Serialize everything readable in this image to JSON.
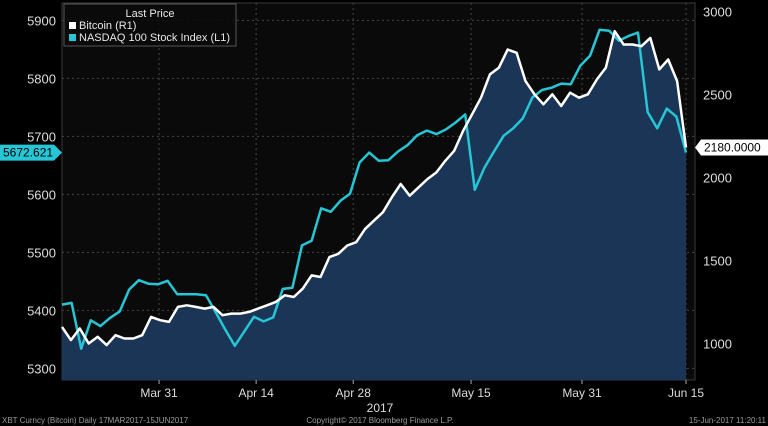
{
  "chart_data": {
    "type": "line",
    "legend_title": "Last Price",
    "legend_position": "top-left",
    "xlabel": "2017",
    "grid": true,
    "x_ticks": [
      "Mar 31",
      "Apr 14",
      "Apr 28",
      "May 15",
      "May 31",
      "Jun 15"
    ],
    "y_left": {
      "range": [
        5280,
        5930
      ],
      "ticks": [
        "5300",
        "5400",
        "5500",
        "5600",
        "5700",
        "5800",
        "5900"
      ]
    },
    "y_right": {
      "range": [
        780,
        3050
      ],
      "ticks": [
        "1000",
        "1500",
        "2000",
        "2500",
        "3000"
      ]
    },
    "series": [
      {
        "name": "NASDAQ 100 Stock Index  (L1)",
        "axis": "left",
        "color": "#26c6d6",
        "last_value_label": "5672.621",
        "values": [
          5410,
          5413,
          5334,
          5383,
          5373,
          5387,
          5398,
          5436,
          5452,
          5446,
          5445,
          5451,
          5428,
          5428,
          5428,
          5426,
          5397,
          5367,
          5339,
          5364,
          5389,
          5381,
          5388,
          5437,
          5439,
          5512,
          5520,
          5576,
          5570,
          5589,
          5601,
          5655,
          5672,
          5658,
          5659,
          5674,
          5685,
          5702,
          5710,
          5704,
          5712,
          5724,
          5738,
          5608,
          5646,
          5674,
          5701,
          5714,
          5731,
          5767,
          5780,
          5784,
          5791,
          5790,
          5822,
          5839,
          5884,
          5882,
          5865,
          5873,
          5879,
          5742,
          5714,
          5748,
          5734,
          5672
        ]
      },
      {
        "name": "Bitcoin  (R1)",
        "axis": "right",
        "color": "#ffffff",
        "last_value_label": "2180.0000",
        "values": [
          1100,
          1020,
          1090,
          1000,
          1040,
          990,
          1050,
          1030,
          1030,
          1050,
          1160,
          1140,
          1130,
          1220,
          1230,
          1220,
          1210,
          1220,
          1170,
          1180,
          1180,
          1190,
          1210,
          1230,
          1250,
          1290,
          1280,
          1330,
          1410,
          1400,
          1520,
          1540,
          1590,
          1610,
          1690,
          1740,
          1790,
          1880,
          1960,
          1890,
          1940,
          1990,
          2030,
          2100,
          2160,
          2280,
          2380,
          2480,
          2620,
          2660,
          2770,
          2750,
          2580,
          2500,
          2440,
          2500,
          2430,
          2510,
          2480,
          2500,
          2590,
          2660,
          2880,
          2800,
          2800,
          2790,
          2840,
          2650,
          2710,
          2580,
          2180
        ]
      }
    ]
  },
  "footer": {
    "left": "XBT Curncy (Bitcoin)  Daily 17MAR2017-15JUN2017",
    "center": "Copyright© 2017 Bloomberg Finance L.P.",
    "right": "15-Jun-2017 11:20:11"
  }
}
